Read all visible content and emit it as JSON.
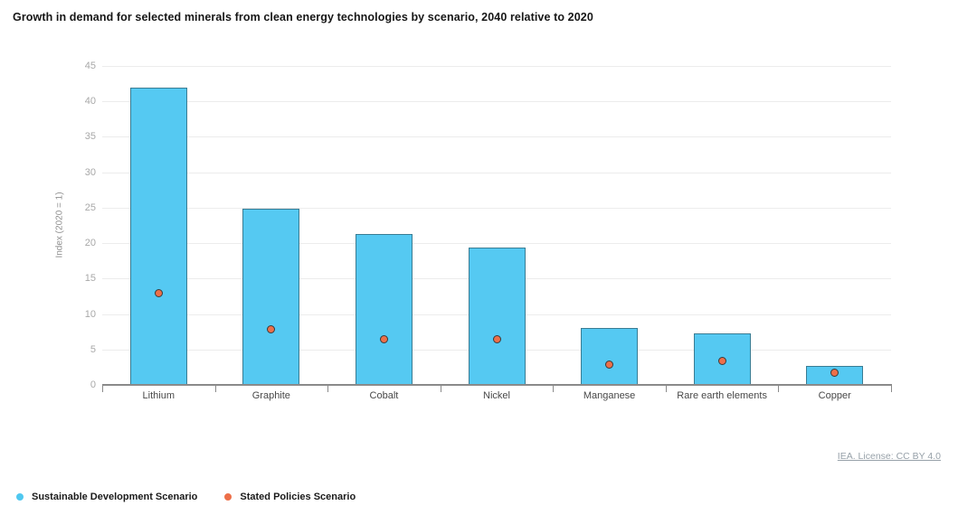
{
  "title": "Growth in demand for selected minerals from clean energy technologies by scenario, 2040 relative to 2020",
  "source": {
    "label": "IEA. License: CC BY 4.0"
  },
  "legend": {
    "items": [
      {
        "label": "Sustainable Development Scenario",
        "color": "#4FC8F0",
        "marker": "circle"
      },
      {
        "label": "Stated Policies Scenario",
        "color": "#ED6F49",
        "marker": "circle"
      }
    ]
  },
  "chart_data": {
    "type": "bar",
    "title": "Growth in demand for selected minerals from clean energy technologies by scenario, 2040 relative to 2020",
    "categories": [
      "Lithium",
      "Graphite",
      "Cobalt",
      "Nickel",
      "Manganese",
      "Rare earth elements",
      "Copper"
    ],
    "series": [
      {
        "name": "Sustainable Development Scenario",
        "type": "bar",
        "color": "#55C9F2",
        "values": [
          42,
          24.8,
          21.3,
          19.4,
          8.0,
          7.3,
          2.7
        ]
      },
      {
        "name": "Stated Policies Scenario",
        "type": "scatter",
        "color": "#ED6F49",
        "values": [
          12.9,
          7.8,
          6.4,
          6.5,
          2.9,
          3.4,
          1.7
        ]
      }
    ],
    "xlabel": "",
    "ylabel": "Index (2020 = 1)",
    "ylim": [
      0,
      45
    ],
    "yticks": [
      0,
      5,
      10,
      15,
      20,
      25,
      30,
      35,
      40,
      45
    ],
    "grid": true,
    "legend_position": "bottom-left"
  }
}
